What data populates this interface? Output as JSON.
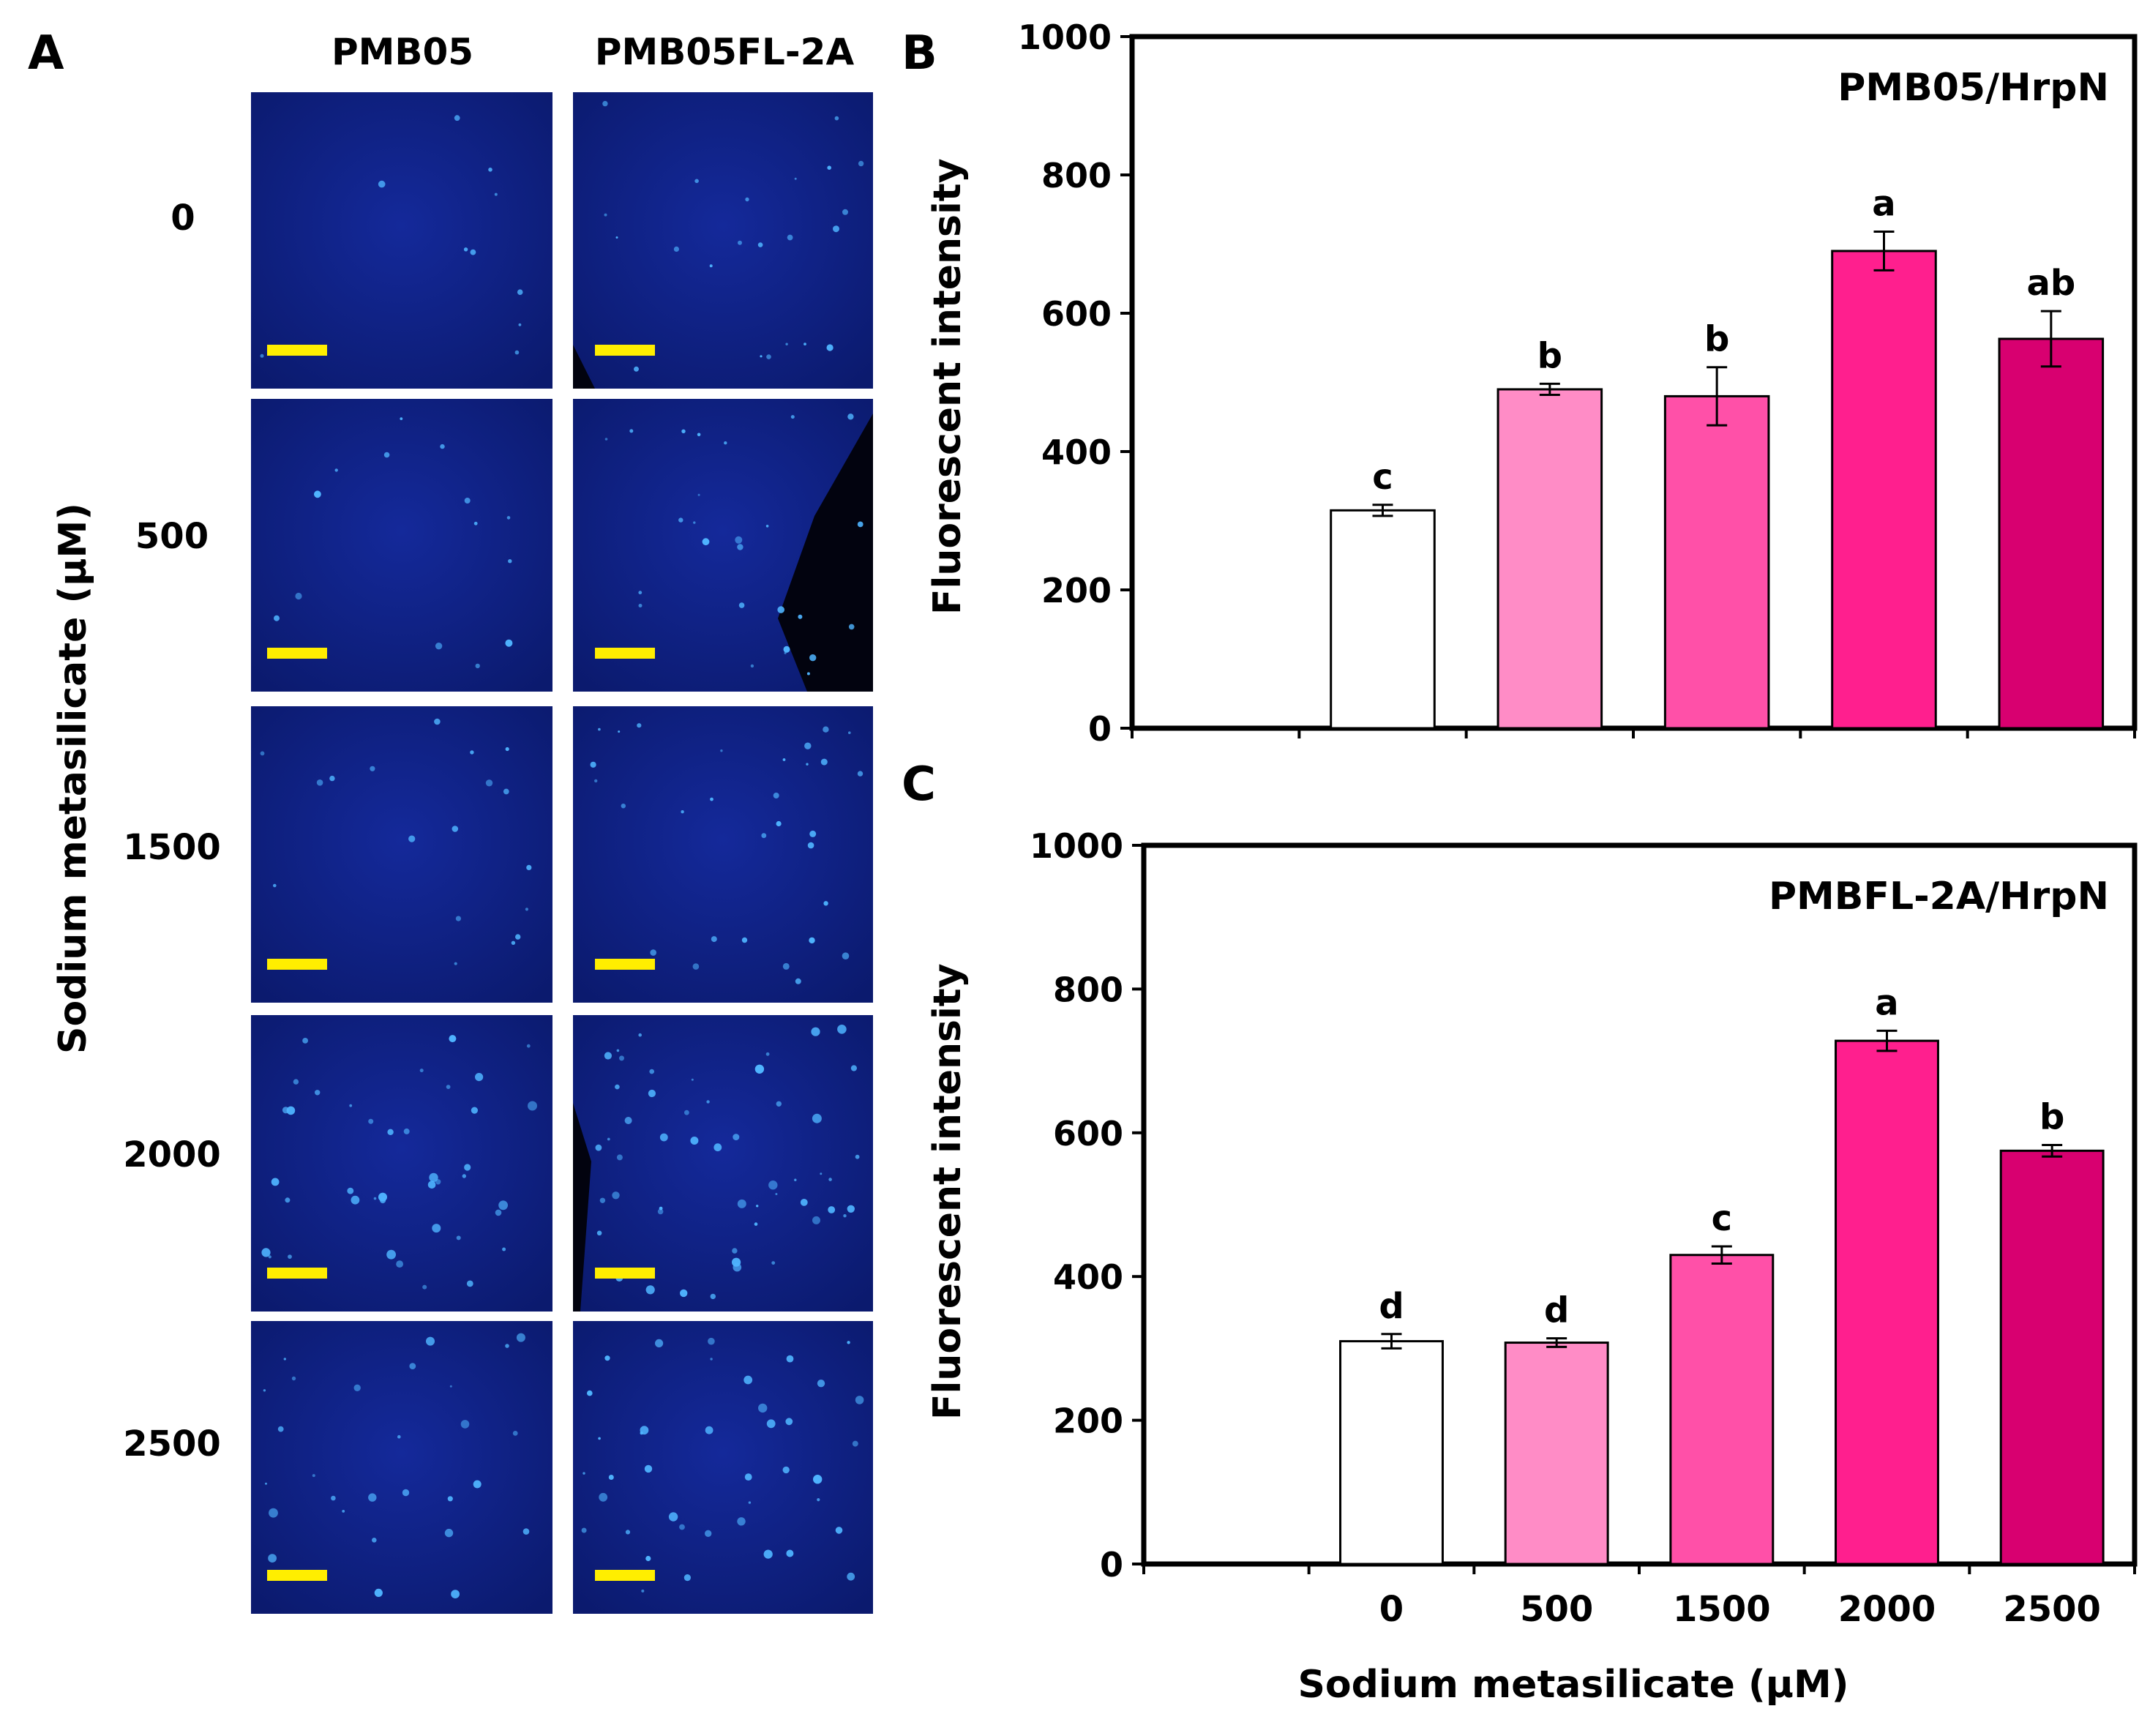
{
  "panelA": {
    "letter": "A",
    "columns": [
      "PMB05",
      "PMB05FL-2A"
    ],
    "rows": [
      "0",
      "500",
      "1500",
      "2000",
      "2500"
    ],
    "y_label": "Sodium metasilicate (μM)",
    "colors": {
      "bg_dark": "#0b1a6e",
      "bg_mid": "#14299a",
      "spot": "#4fb4ff",
      "scale_bar": "#ffee00"
    }
  },
  "panelB": {
    "letter": "B"
  },
  "panelC": {
    "letter": "C"
  },
  "chart_data": [
    {
      "type": "bar",
      "panel": "B",
      "title": "PMB05/HrpN",
      "xlabel": "",
      "ylabel": "Fluorescent intensity",
      "categories": [
        "0",
        "500",
        "1500",
        "2000",
        "2500"
      ],
      "show_category_labels": false,
      "values": [
        315,
        490,
        480,
        690,
        563
      ],
      "errors": [
        8,
        8,
        42,
        28,
        40
      ],
      "letters": [
        "c",
        "b",
        "b",
        "a",
        "ab"
      ],
      "colors": [
        "#ffffff",
        "#ff8cc6",
        "#ff50a8",
        "#ff1f8e",
        "#d80070"
      ],
      "ylim": [
        0,
        1000
      ],
      "yticks": [
        "0",
        "200",
        "400",
        "600",
        "800",
        "1000"
      ],
      "grid": false
    },
    {
      "type": "bar",
      "panel": "C",
      "title": "PMBFL-2A/HrpN",
      "xlabel": "Sodium metasilicate (μM)",
      "ylabel": "Fluorescent intensity",
      "categories": [
        "0",
        "500",
        "1500",
        "2000",
        "2500"
      ],
      "show_category_labels": true,
      "values": [
        310,
        308,
        430,
        728,
        575
      ],
      "errors": [
        10,
        6,
        12,
        14,
        8
      ],
      "letters": [
        "d",
        "d",
        "c",
        "a",
        "b"
      ],
      "colors": [
        "#ffffff",
        "#ff8cc6",
        "#ff50a8",
        "#ff1f8e",
        "#d80070"
      ],
      "ylim": [
        0,
        1000
      ],
      "yticks": [
        "0",
        "200",
        "400",
        "600",
        "800",
        "1000"
      ],
      "grid": false
    }
  ]
}
